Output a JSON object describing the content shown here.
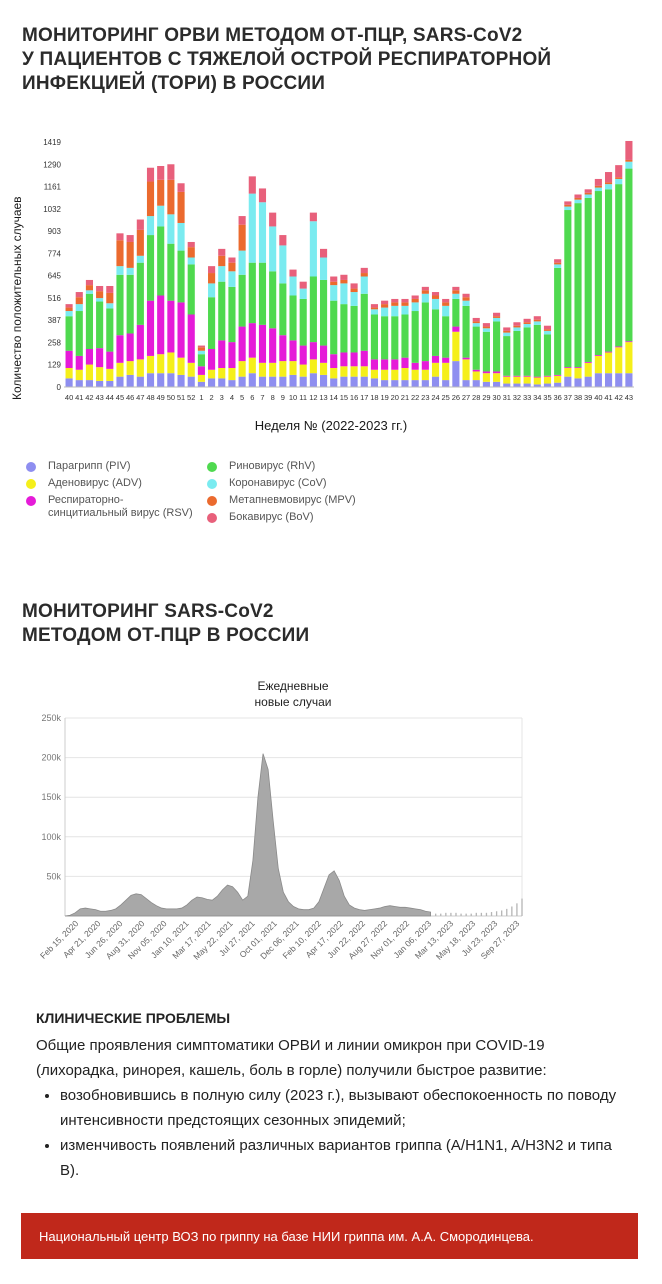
{
  "section1": {
    "title_lines": [
      "МОНИТОРИНГ ОРВИ МЕТОДОМ ОТ-ПЦР, SARS-CoV2",
      "У ПАЦИЕНТОВ С ТЯЖЕЛОЙ ОСТРОЙ РЕСПИРАТОРНОЙ",
      "ИНФЕКЦИЕЙ (ТОРИ) В РОССИИ"
    ]
  },
  "section2": {
    "title_lines": [
      "МОНИТОРИНГ SARS-CoV2",
      "МЕТОДОМ ОТ-ПЦР В РОССИИ"
    ]
  },
  "clinical": {
    "heading": "КЛИНИЧЕСКИЕ ПРОБЛЕМЫ",
    "intro": "Общие проявления симптоматики ОРВИ и линии омикрон при COVID-19 (лихорадка, ринорея, кашель, боль в горле) получили быстрое развитие:",
    "bullets": [
      "возобновившись в полную силу (2023 г.), вызывают обеспокоенность по поводу интенсивности предстоящих сезонных эпидемий;",
      "изменчивость появлений различных вариантов гриппа (A/H1N1, A/H3N2 и типа B)."
    ]
  },
  "footer": {
    "text": "Национальный центр ВОЗ по гриппу на базе НИИ гриппа им. А.А. Смородинцева."
  },
  "chart_data": [
    {
      "type": "bar",
      "stacked": true,
      "ylabel": "Количество положительных случаев",
      "xlabel": "Неделя № (2022-2023 гг.)",
      "ylim": [
        0,
        1419
      ],
      "yticks": [
        0,
        129,
        258,
        387,
        516,
        645,
        774,
        903,
        1032,
        1161,
        1290,
        1419
      ],
      "categories": [
        "40",
        "41",
        "42",
        "43",
        "44",
        "45",
        "46",
        "47",
        "48",
        "49",
        "50",
        "51",
        "52",
        "1",
        "2",
        "3",
        "4",
        "5",
        "6",
        "7",
        "8",
        "9",
        "10",
        "11",
        "12",
        "13",
        "14",
        "15",
        "16",
        "17",
        "18",
        "19",
        "20",
        "21",
        "22",
        "23",
        "24",
        "25",
        "26",
        "27",
        "28",
        "29",
        "30",
        "31",
        "32",
        "33",
        "34",
        "35",
        "36",
        "37",
        "38",
        "39",
        "40",
        "41",
        "42",
        "43"
      ],
      "series": [
        {
          "name": "Парагрипп (PIV)",
          "color": "#8e8ef0",
          "values": [
            50,
            40,
            40,
            35,
            35,
            60,
            70,
            60,
            80,
            80,
            80,
            70,
            60,
            30,
            50,
            50,
            40,
            60,
            80,
            60,
            60,
            60,
            70,
            60,
            80,
            70,
            50,
            60,
            60,
            60,
            50,
            40,
            40,
            40,
            40,
            40,
            60,
            40,
            150,
            40,
            40,
            30,
            30,
            20,
            20,
            20,
            15,
            20,
            25,
            60,
            50,
            60,
            80,
            80,
            80,
            80
          ]
        },
        {
          "name": "Аденовирус (ADV)",
          "color": "#f5ef1a",
          "values": [
            60,
            60,
            90,
            80,
            70,
            80,
            80,
            100,
            100,
            110,
            120,
            100,
            80,
            40,
            50,
            60,
            70,
            90,
            90,
            80,
            80,
            90,
            80,
            70,
            80,
            70,
            60,
            60,
            60,
            60,
            50,
            60,
            60,
            70,
            60,
            60,
            80,
            100,
            170,
            120,
            50,
            50,
            50,
            40,
            40,
            40,
            40,
            40,
            40,
            50,
            60,
            80,
            100,
            120,
            150,
            180
          ]
        },
        {
          "name": "Респираторно-синцитиальный вирус (RSV)",
          "color": "#e51bd8",
          "values": [
            100,
            80,
            90,
            110,
            100,
            160,
            160,
            200,
            320,
            340,
            300,
            320,
            280,
            50,
            120,
            160,
            150,
            200,
            200,
            220,
            200,
            150,
            120,
            110,
            100,
            100,
            80,
            80,
            80,
            90,
            60,
            60,
            60,
            60,
            40,
            50,
            40,
            30,
            30,
            10,
            10,
            10,
            10,
            5,
            5,
            5,
            5,
            5,
            5,
            5,
            5,
            5,
            5,
            5,
            5,
            5
          ]
        },
        {
          "name": "Риновирус (RhV)",
          "color": "#4fd94f",
          "values": [
            200,
            260,
            320,
            270,
            250,
            350,
            340,
            360,
            380,
            400,
            330,
            300,
            290,
            70,
            300,
            340,
            320,
            300,
            350,
            360,
            330,
            300,
            260,
            270,
            380,
            380,
            310,
            280,
            270,
            330,
            260,
            250,
            250,
            250,
            300,
            340,
            270,
            240,
            160,
            300,
            250,
            230,
            290,
            230,
            260,
            280,
            300,
            240,
            620,
            910,
            950,
            950,
            950,
            940,
            940,
            1000
          ]
        },
        {
          "name": "Коронавирус (CoV)",
          "color": "#7aebf0",
          "values": [
            30,
            40,
            20,
            20,
            30,
            50,
            40,
            40,
            110,
            120,
            170,
            160,
            40,
            20,
            80,
            90,
            90,
            140,
            400,
            350,
            260,
            220,
            110,
            60,
            320,
            130,
            90,
            120,
            80,
            100,
            30,
            50,
            60,
            50,
            50,
            50,
            60,
            60,
            30,
            30,
            20,
            20,
            20,
            20,
            20,
            20,
            20,
            20,
            20,
            20,
            20,
            20,
            20,
            30,
            30,
            40
          ]
        },
        {
          "name": "Метапневмовирус (MPV)",
          "color": "#eb6a2e",
          "values": [
            20,
            40,
            30,
            40,
            60,
            150,
            150,
            150,
            200,
            150,
            200,
            180,
            60,
            20,
            60,
            60,
            50,
            150,
            0,
            0,
            0,
            0,
            0,
            0,
            0,
            0,
            20,
            20,
            20,
            20,
            10,
            20,
            20,
            20,
            20,
            20,
            20,
            20,
            20,
            20,
            10,
            10,
            10,
            10,
            10,
            10,
            10,
            10,
            10,
            10,
            10,
            10,
            10,
            10,
            10,
            10
          ]
        },
        {
          "name": "Бокавирус (BoV)",
          "color": "#e8607b",
          "values": [
            20,
            30,
            30,
            30,
            40,
            40,
            40,
            60,
            80,
            80,
            90,
            50,
            30,
            10,
            40,
            40,
            30,
            50,
            100,
            80,
            80,
            60,
            40,
            40,
            50,
            50,
            30,
            30,
            30,
            30,
            20,
            20,
            20,
            20,
            20,
            20,
            20,
            20,
            20,
            20,
            20,
            20,
            20,
            20,
            20,
            20,
            20,
            20,
            20,
            20,
            20,
            20,
            40,
            60,
            70,
            110
          ]
        }
      ]
    },
    {
      "type": "area",
      "title_lines": [
        "Ежедневные",
        "новые случаи"
      ],
      "ylim": [
        0,
        250000
      ],
      "yticks": [
        {
          "v": 50000,
          "label": "50k"
        },
        {
          "v": 100000,
          "label": "100k"
        },
        {
          "v": 150000,
          "label": "150k"
        },
        {
          "v": 200000,
          "label": "200k"
        },
        {
          "v": 250000,
          "label": "250k"
        }
      ],
      "xtick_labels": [
        "Feb 15, 2020",
        "Apr 21, 2020",
        "Jun 26, 2020",
        "Aug 31, 2020",
        "Nov 05, 2020",
        "Jan 10, 2021",
        "Mar 17, 2021",
        "May 22, 2021",
        "Jul 27, 2021",
        "Oct 01, 2021",
        "Dec 06, 2021",
        "Feb 10, 2022",
        "Apr 17, 2022",
        "Jun 22, 2022",
        "Aug 27, 2022",
        "Nov 01, 2022",
        "Jan 06, 2023",
        "Mar 13, 2023",
        "May 18, 2023",
        "Jul 23, 2023",
        "Sep 27, 2023"
      ],
      "x_index": [
        0,
        1,
        2,
        3,
        4,
        5,
        6,
        7,
        8,
        9,
        10,
        11,
        12,
        13,
        14,
        15,
        16,
        17,
        18,
        19,
        20,
        21,
        22,
        23,
        24,
        25,
        26,
        27,
        28,
        29,
        30,
        31,
        32,
        33,
        34,
        35,
        36,
        37,
        38,
        39,
        40,
        41,
        42,
        43,
        44,
        45,
        46,
        47,
        48,
        49,
        50,
        51,
        52,
        53,
        54,
        55,
        56,
        57,
        58,
        59,
        60,
        61,
        62,
        63,
        64,
        65,
        66,
        67,
        68,
        69,
        70,
        71,
        72,
        73,
        74,
        75,
        76,
        77,
        78,
        79,
        80,
        81,
        82,
        83,
        84,
        85,
        86,
        87,
        88,
        89,
        90
      ],
      "values": [
        0,
        1000,
        4000,
        9000,
        10000,
        9000,
        8000,
        6000,
        6000,
        7000,
        9000,
        14000,
        20000,
        26000,
        28000,
        27000,
        22000,
        17000,
        13000,
        10000,
        9000,
        9000,
        9000,
        10000,
        14000,
        20000,
        24000,
        23000,
        21000,
        20000,
        25000,
        33000,
        39000,
        37000,
        30000,
        20000,
        25000,
        70000,
        150000,
        205000,
        185000,
        120000,
        60000,
        30000,
        18000,
        12000,
        9000,
        8000,
        8000,
        10000,
        18000,
        35000,
        52000,
        57000,
        45000,
        25000,
        14000,
        10000,
        8000,
        7000,
        8000,
        9000,
        10000,
        12000,
        13000,
        12000,
        11000,
        11000,
        10000,
        9000,
        8000,
        6000,
        5000,
        3000,
        3000,
        4000,
        4000,
        4000,
        3000,
        3000,
        3000,
        4000,
        4000,
        4000,
        5000,
        6000,
        7000,
        9000,
        12000,
        16000,
        22000
      ],
      "solid_until_index": 72
    }
  ]
}
